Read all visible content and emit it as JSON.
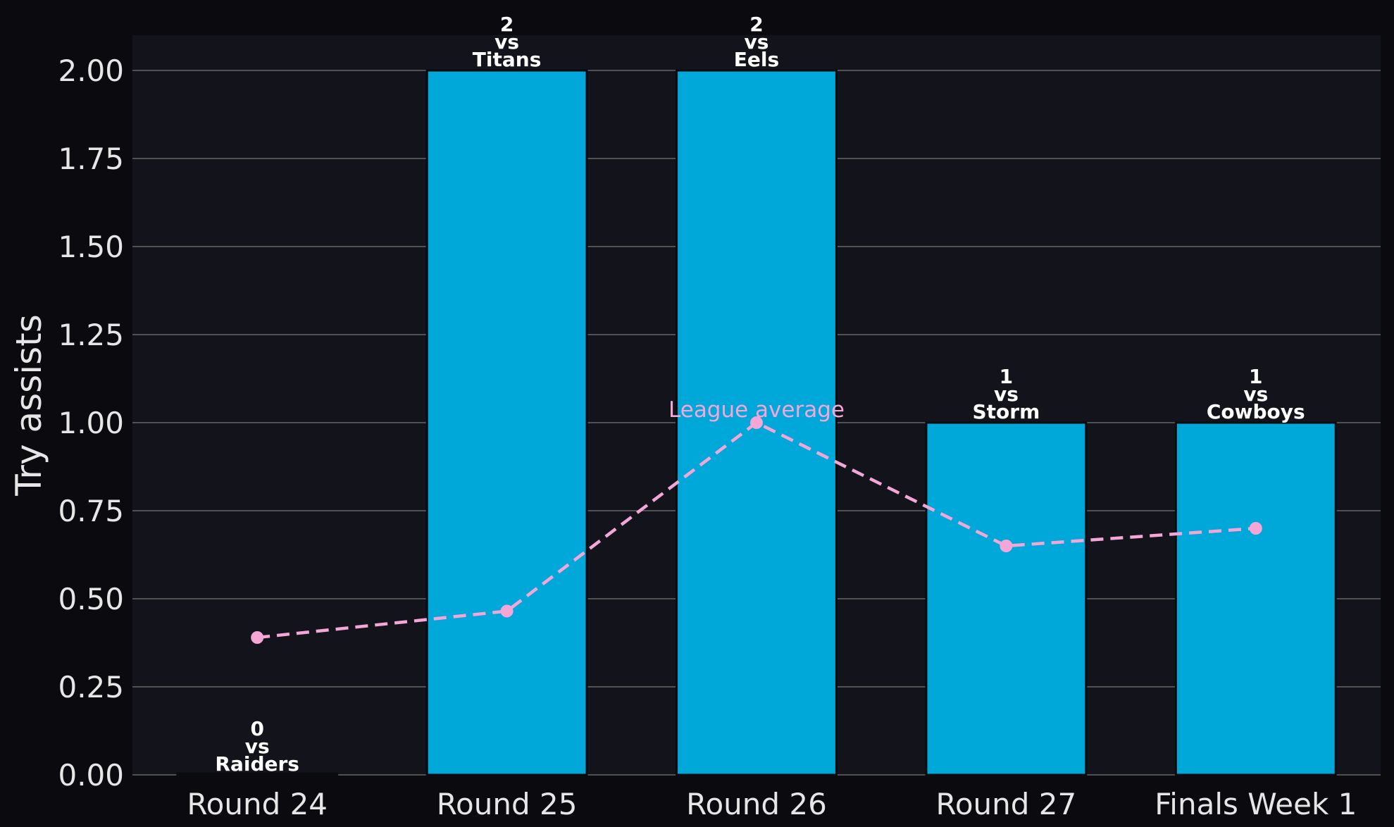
{
  "chart_data": {
    "type": "bar",
    "title": "",
    "xlabel": "",
    "ylabel": "Try assists",
    "categories": [
      "Round 24",
      "Round 25",
      "Round 26",
      "Round 27",
      "Finals Week 1"
    ],
    "opponents": [
      "Raiders",
      "Titans",
      "Eels",
      "Storm",
      "Cowboys"
    ],
    "vs_text": "vs",
    "series": [
      {
        "values": [
          0,
          2,
          2,
          1,
          1
        ],
        "kind": "bar",
        "color": "#00a8da"
      },
      {
        "values": [
          0.39,
          0.465,
          1.0,
          0.65,
          0.7
        ],
        "kind": "line",
        "style": "dashed",
        "marker": "circle",
        "color": "#f4a6d7"
      }
    ],
    "annotation": {
      "text": "League average",
      "category": "Round 26",
      "color": "#f4a6d7"
    },
    "ylim": [
      0,
      2.1
    ],
    "yticks": [
      "0.00",
      "0.25",
      "0.50",
      "0.75",
      "1.00",
      "1.25",
      "1.50",
      "1.75",
      "2.00"
    ],
    "grid": "horizontal",
    "legend": "none",
    "colors": {
      "figure_background": "#0b0b0f",
      "plot_background": "#13131b",
      "gridline": "#666666",
      "bar": "#00a8da",
      "bar_edge": "#0b0b0f",
      "line": "#f4a6d7",
      "text": "#e6e6e6",
      "bar_label": "#ffffff"
    }
  }
}
